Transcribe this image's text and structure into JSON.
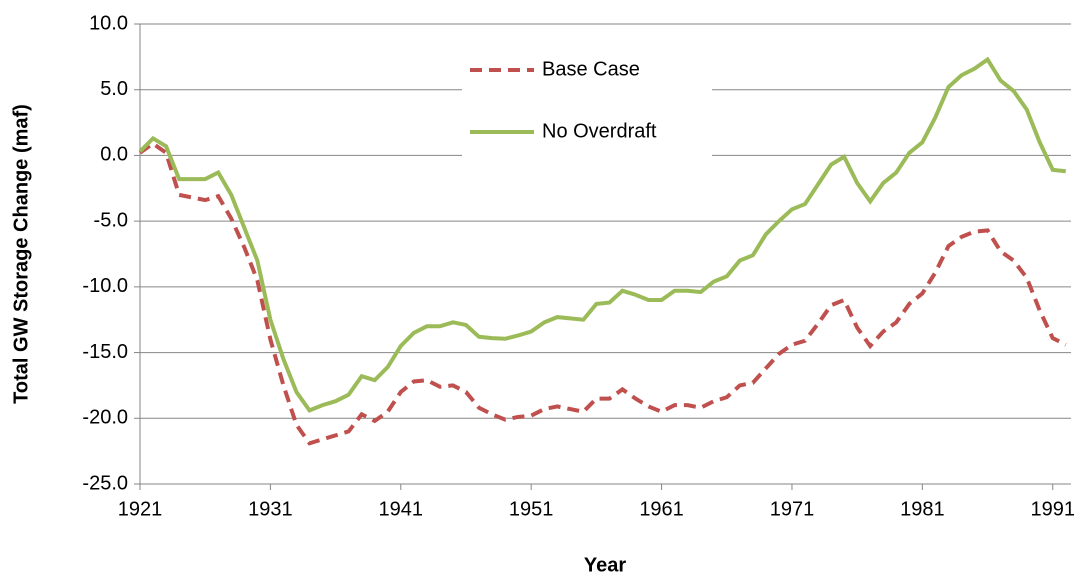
{
  "chart_data": {
    "type": "line",
    "y_label": "Total GW Storage Change (maf)",
    "x_label": "Year",
    "x": [
      1921,
      1922,
      1923,
      1924,
      1925,
      1926,
      1927,
      1928,
      1929,
      1930,
      1931,
      1932,
      1933,
      1934,
      1935,
      1936,
      1937,
      1938,
      1939,
      1940,
      1941,
      1942,
      1943,
      1944,
      1945,
      1946,
      1947,
      1948,
      1949,
      1950,
      1951,
      1952,
      1953,
      1954,
      1955,
      1956,
      1957,
      1958,
      1959,
      1960,
      1961,
      1962,
      1963,
      1964,
      1965,
      1966,
      1967,
      1968,
      1969,
      1970,
      1971,
      1972,
      1973,
      1974,
      1975,
      1976,
      1977,
      1978,
      1979,
      1980,
      1981,
      1982,
      1983,
      1984,
      1985,
      1986,
      1987,
      1988,
      1989,
      1990,
      1991,
      1992
    ],
    "series": [
      {
        "name": "Base Case",
        "color": "#c0504d",
        "dashed": true,
        "values": [
          0.2,
          0.9,
          0.2,
          -3.0,
          -3.2,
          -3.4,
          -3.1,
          -4.8,
          -7.0,
          -9.5,
          -14.0,
          -17.5,
          -20.5,
          -21.9,
          -21.6,
          -21.3,
          -21.0,
          -19.7,
          -20.2,
          -19.5,
          -18.0,
          -17.2,
          -17.1,
          -17.6,
          -17.5,
          -18.0,
          -19.2,
          -19.7,
          -20.1,
          -19.9,
          -19.8,
          -19.3,
          -19.1,
          -19.3,
          -19.5,
          -18.5,
          -18.5,
          -17.8,
          -18.5,
          -19.1,
          -19.5,
          -19.0,
          -19.0,
          -19.2,
          -18.7,
          -18.4,
          -17.5,
          -17.3,
          -16.2,
          -15.1,
          -14.4,
          -14.1,
          -12.8,
          -11.4,
          -11.0,
          -13.1,
          -14.5,
          -13.4,
          -12.7,
          -11.3,
          -10.5,
          -8.9,
          -6.9,
          -6.2,
          -5.8,
          -5.7,
          -7.3,
          -8.0,
          -9.3,
          -11.8,
          -13.9,
          -14.4
        ]
      },
      {
        "name": "No Overdraft",
        "color": "#9bbb59",
        "dashed": false,
        "values": [
          0.3,
          1.3,
          0.7,
          -1.8,
          -1.8,
          -1.8,
          -1.3,
          -3.0,
          -5.5,
          -8.0,
          -12.5,
          -15.5,
          -18.0,
          -19.4,
          -19.0,
          -18.7,
          -18.2,
          -16.8,
          -17.1,
          -16.1,
          -14.5,
          -13.5,
          -13.0,
          -13.0,
          -12.7,
          -12.9,
          -13.8,
          -13.9,
          -13.95,
          -13.7,
          -13.4,
          -12.7,
          -12.3,
          -12.4,
          -12.5,
          -11.3,
          -11.2,
          -10.3,
          -10.6,
          -11.0,
          -11.0,
          -10.3,
          -10.3,
          -10.4,
          -9.6,
          -9.2,
          -8.0,
          -7.6,
          -6.0,
          -5.0,
          -4.1,
          -3.7,
          -2.2,
          -0.7,
          -0.1,
          -2.1,
          -3.5,
          -2.1,
          -1.3,
          0.2,
          1.0,
          2.9,
          5.2,
          6.1,
          6.6,
          7.3,
          5.7,
          4.9,
          3.5,
          1.0,
          -1.1,
          -1.2
        ]
      }
    ],
    "xlim": [
      1921,
      1992.4
    ],
    "xticks": [
      1921,
      1931,
      1941,
      1951,
      1961,
      1971,
      1981,
      1991
    ],
    "ylim": [
      -25,
      10
    ],
    "yticks": [
      {
        "value": -25,
        "label": "-25.0"
      },
      {
        "value": -20,
        "label": "-20.0"
      },
      {
        "value": -15,
        "label": "-15.0"
      },
      {
        "value": -10,
        "label": "-10.0"
      },
      {
        "value": -5,
        "label": "-5.0"
      },
      {
        "value": 0,
        "label": "0.0"
      },
      {
        "value": 5,
        "label": "5.0"
      },
      {
        "value": 10,
        "label": "10.0"
      }
    ],
    "grid": true,
    "legend": "top"
  }
}
